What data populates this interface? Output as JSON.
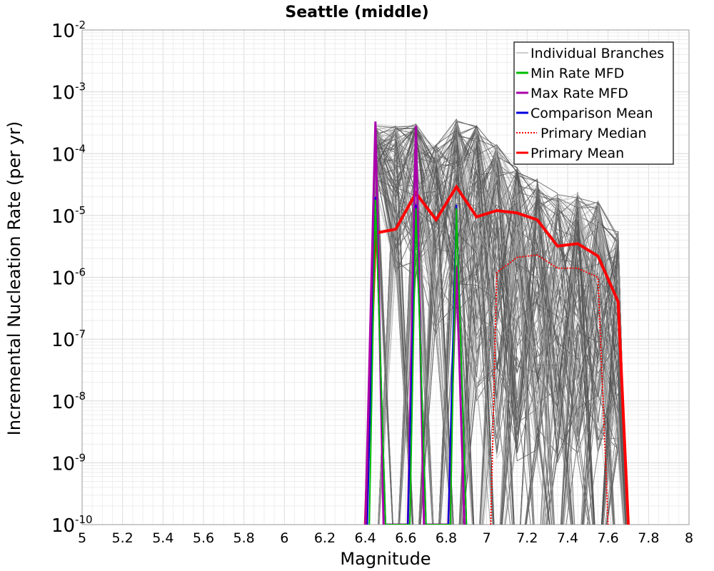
{
  "chart_data": {
    "type": "line",
    "title": "Seattle (middle)",
    "xlabel": "Magnitude",
    "ylabel": "Incremental Nucleation Rate (per yr)",
    "xlim": [
      5,
      8
    ],
    "ylim": [
      1e-10,
      0.01
    ],
    "yscale": "log",
    "grid": true,
    "x_ticks": [
      "5",
      "5.2",
      "5.4",
      "5.6",
      "5.8",
      "6",
      "6.2",
      "6.4",
      "6.6",
      "6.8",
      "7",
      "7.2",
      "7.4",
      "7.6",
      "7.8",
      "8"
    ],
    "y_ticks": [
      {
        "base": "10",
        "exp": "-2"
      },
      {
        "base": "10",
        "exp": "-3"
      },
      {
        "base": "10",
        "exp": "-4"
      },
      {
        "base": "10",
        "exp": "-5"
      },
      {
        "base": "10",
        "exp": "-6"
      },
      {
        "base": "10",
        "exp": "-7"
      },
      {
        "base": "10",
        "exp": "-8"
      },
      {
        "base": "10",
        "exp": "-9"
      },
      {
        "base": "10",
        "exp": "-10"
      }
    ],
    "legend_position": "top-right",
    "legend": [
      {
        "label": "Individual Branches",
        "color": "#bbbbbb",
        "style": "solid"
      },
      {
        "label": "Min Rate MFD",
        "color": "#00bb00",
        "style": "solid"
      },
      {
        "label": "Max Rate MFD",
        "color": "#aa00aa",
        "style": "solid"
      },
      {
        "label": "Comparison Mean",
        "color": "#0000dd",
        "style": "solid"
      },
      {
        "label": "Primary Median",
        "color": "#ff0000",
        "style": "dotted"
      },
      {
        "label": "Primary Mean",
        "color": "#ff0000",
        "style": "solid"
      }
    ],
    "series": [
      {
        "name": "Primary Mean",
        "color": "#ff0000",
        "style": "solid",
        "width": 4,
        "x": [
          6.4,
          6.45,
          6.55,
          6.65,
          6.75,
          6.85,
          6.95,
          7.05,
          7.15,
          7.25,
          7.35,
          7.45,
          7.55,
          7.65,
          7.7
        ],
        "y": [
          1e-10,
          5.2e-06,
          6e-06,
          2.3e-05,
          8.5e-06,
          2.9e-05,
          9.5e-06,
          1.2e-05,
          1.1e-05,
          8.5e-06,
          3.2e-06,
          3.5e-06,
          2.2e-06,
          4e-07,
          1e-10
        ]
      },
      {
        "name": "Primary Median",
        "color": "#ff0000",
        "style": "dotted",
        "width": 2,
        "x": [
          7.02,
          7.05,
          7.15,
          7.25,
          7.35,
          7.45,
          7.55,
          7.6
        ],
        "y": [
          1e-10,
          1.2e-06,
          2.1e-06,
          2.3e-06,
          1.4e-06,
          1.4e-06,
          1e-06,
          1e-10
        ]
      },
      {
        "name": "Max Rate MFD",
        "color": "#aa00aa",
        "style": "solid",
        "width": 3,
        "x": [
          6.4,
          6.45,
          6.49,
          6.61,
          6.65,
          6.69,
          6.81,
          6.85,
          6.89
        ],
        "y": [
          1e-10,
          0.00033,
          1e-10,
          1e-10,
          0.00028,
          1e-10,
          1e-10,
          1.5e-06,
          1e-10
        ]
      },
      {
        "name": "Comparison Mean",
        "color": "#0000dd",
        "style": "solid",
        "width": 2,
        "x": [
          6.41,
          6.45,
          6.5,
          6.61,
          6.65,
          6.7,
          6.81,
          6.85,
          6.9
        ],
        "y": [
          1e-10,
          2e-05,
          1e-10,
          1e-10,
          1.5e-05,
          1e-10,
          1e-10,
          1.5e-05,
          1e-10
        ]
      },
      {
        "name": "Min Rate MFD",
        "color": "#00bb00",
        "style": "solid",
        "width": 2,
        "x": [
          6.42,
          6.45,
          6.5,
          6.62,
          6.65,
          6.7,
          6.82,
          6.85,
          6.9
        ],
        "y": [
          1e-10,
          1.8e-05,
          1e-10,
          1e-10,
          1.3e-05,
          1e-10,
          1e-10,
          1.3e-05,
          1e-10
        ]
      }
    ],
    "branch_envelope": {
      "name": "Individual Branches",
      "color": "#555555",
      "x": [
        6.45,
        6.55,
        6.65,
        6.75,
        6.85,
        6.95,
        7.05,
        7.15,
        7.25,
        7.35,
        7.45,
        7.55,
        7.65
      ],
      "y_high": [
        0.0003,
        0.00028,
        0.0003,
        0.00014,
        0.00037,
        0.00028,
        0.00014,
        6e-05,
        4e-05,
        2.3e-05,
        2.4e-05,
        1.7e-05,
        5.5e-06
      ],
      "y_low": [
        2e-05,
        1e-06,
        1e-06,
        1e-07,
        2e-07,
        1e-08,
        1e-09,
        1e-09,
        1e-09,
        1e-09,
        1e-09,
        1e-09,
        1e-09
      ]
    }
  }
}
